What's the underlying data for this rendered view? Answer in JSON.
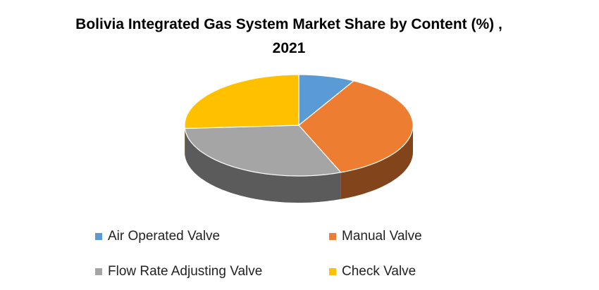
{
  "chart_data": {
    "type": "pie3d",
    "title": "Bolivia Integrated Gas System Market Share by Content (%) , 2021",
    "categories": [
      "Air Operated Valve",
      "Manual Valve",
      "Flow Rate Adjusting Valve",
      "Check Valve"
    ],
    "values": [
      8,
      36,
      30,
      26
    ],
    "colors": [
      "#5b9bd5",
      "#ed7d31",
      "#a5a5a5",
      "#ffc000"
    ]
  }
}
